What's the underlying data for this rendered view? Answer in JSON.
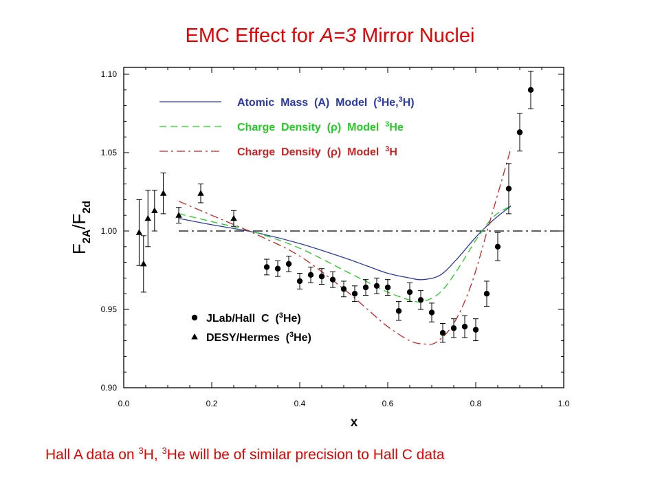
{
  "slide": {
    "title_prefix": "EMC Effect for ",
    "title_italic": "A=3",
    "title_suffix": " Mirror Nuclei",
    "footnote_a": "Hall A data on ",
    "footnote_sup1": "3",
    "footnote_b": "H, ",
    "footnote_sup2": "3",
    "footnote_c": "He will be of similar precision to Hall C data"
  },
  "chart_data": {
    "type": "scatter",
    "xlabel": "x",
    "ylabel": "F2A/F2d",
    "xlim": [
      0.0,
      1.0
    ],
    "ylim": [
      0.9,
      1.1
    ],
    "x_ticks": [
      "0.0",
      "0.2",
      "0.4",
      "0.6",
      "0.8",
      "1.0"
    ],
    "y_ticks": [
      "0.90",
      "0.95",
      "1.00",
      "1.05",
      "1.10"
    ],
    "reference_line": 1.0,
    "colors": {
      "atomic": "#2b3aa8",
      "rho_he": "#22cc22",
      "rho_h": "#cc2222",
      "points": "#000000",
      "reference": "#000000"
    },
    "legend_models": [
      {
        "key": "atomic",
        "text": "Atomic  Mass  (A)  Model  (",
        "sup1": "3",
        "mid": "He,",
        "sup2": "3",
        "end": "H)",
        "style": "solid"
      },
      {
        "key": "rho_he",
        "text": "Charge  Density  (ρ)  Model  ",
        "sup1": "3",
        "mid": "He",
        "sup2": "",
        "end": "",
        "style": "dashed"
      },
      {
        "key": "rho_h",
        "text": "Charge  Density  (ρ)  Model  ",
        "sup1": "3",
        "mid": "H",
        "sup2": "",
        "end": "",
        "style": "dashdot"
      }
    ],
    "legend_points": [
      {
        "key": "jlab",
        "text": "JLab/Hall  C  (",
        "sup": "3",
        "end": "He)",
        "marker": "circle"
      },
      {
        "key": "desy",
        "text": "DESY/Hermes  (",
        "sup": "3",
        "end": "He)",
        "marker": "triangle"
      }
    ],
    "series": [
      {
        "name": "Atomic Mass (A) Model (3He,3H)",
        "kind": "curve",
        "style": "solid",
        "x": [
          0.125,
          0.2,
          0.3,
          0.4,
          0.5,
          0.55,
          0.6,
          0.65,
          0.68,
          0.72,
          0.76,
          0.8,
          0.84,
          0.88
        ],
        "y": [
          1.008,
          1.004,
          0.999,
          0.992,
          0.983,
          0.978,
          0.973,
          0.97,
          0.969,
          0.972,
          0.983,
          0.996,
          1.007,
          1.016
        ]
      },
      {
        "name": "Charge Density (ρ) Model 3He",
        "kind": "curve",
        "style": "dashed",
        "x": [
          0.125,
          0.2,
          0.3,
          0.4,
          0.5,
          0.55,
          0.6,
          0.65,
          0.68,
          0.72,
          0.76,
          0.8,
          0.84,
          0.88
        ],
        "y": [
          1.011,
          1.006,
          0.999,
          0.989,
          0.975,
          0.968,
          0.961,
          0.956,
          0.955,
          0.961,
          0.976,
          0.994,
          1.009,
          1.016
        ]
      },
      {
        "name": "Charge Density (ρ) Model 3H",
        "kind": "curve",
        "style": "dashdot",
        "x": [
          0.125,
          0.2,
          0.3,
          0.4,
          0.5,
          0.55,
          0.6,
          0.65,
          0.68,
          0.71,
          0.75,
          0.79,
          0.83,
          0.87,
          0.88
        ],
        "y": [
          1.019,
          1.01,
          0.998,
          0.984,
          0.963,
          0.951,
          0.939,
          0.93,
          0.928,
          0.929,
          0.941,
          0.966,
          1.004,
          1.043,
          1.053
        ]
      },
      {
        "name": "JLab/Hall C (3He)",
        "kind": "points",
        "marker": "circle",
        "x": [
          0.325,
          0.35,
          0.375,
          0.4,
          0.425,
          0.45,
          0.475,
          0.5,
          0.525,
          0.55,
          0.575,
          0.6,
          0.625,
          0.65,
          0.675,
          0.7,
          0.725,
          0.75,
          0.775,
          0.8,
          0.825,
          0.85,
          0.875,
          0.9,
          0.925
        ],
        "y": [
          0.977,
          0.976,
          0.979,
          0.968,
          0.972,
          0.971,
          0.969,
          0.963,
          0.96,
          0.964,
          0.965,
          0.964,
          0.949,
          0.961,
          0.956,
          0.948,
          0.935,
          0.938,
          0.939,
          0.937,
          0.96,
          0.99,
          1.027,
          1.063,
          1.09
        ],
        "err": [
          0.005,
          0.005,
          0.005,
          0.005,
          0.005,
          0.005,
          0.005,
          0.005,
          0.005,
          0.005,
          0.005,
          0.005,
          0.006,
          0.006,
          0.006,
          0.006,
          0.006,
          0.006,
          0.007,
          0.007,
          0.008,
          0.009,
          0.016,
          0.012,
          0.012
        ]
      },
      {
        "name": "DESY/Hermes (3He)",
        "kind": "points",
        "marker": "triangle",
        "x": [
          0.035,
          0.045,
          0.055,
          0.07,
          0.09,
          0.125,
          0.175,
          0.25
        ],
        "y": [
          0.999,
          0.979,
          1.008,
          1.013,
          1.024,
          1.01,
          1.024,
          1.008
        ],
        "err": [
          0.021,
          0.018,
          0.018,
          0.013,
          0.013,
          0.005,
          0.006,
          0.005
        ]
      }
    ]
  }
}
